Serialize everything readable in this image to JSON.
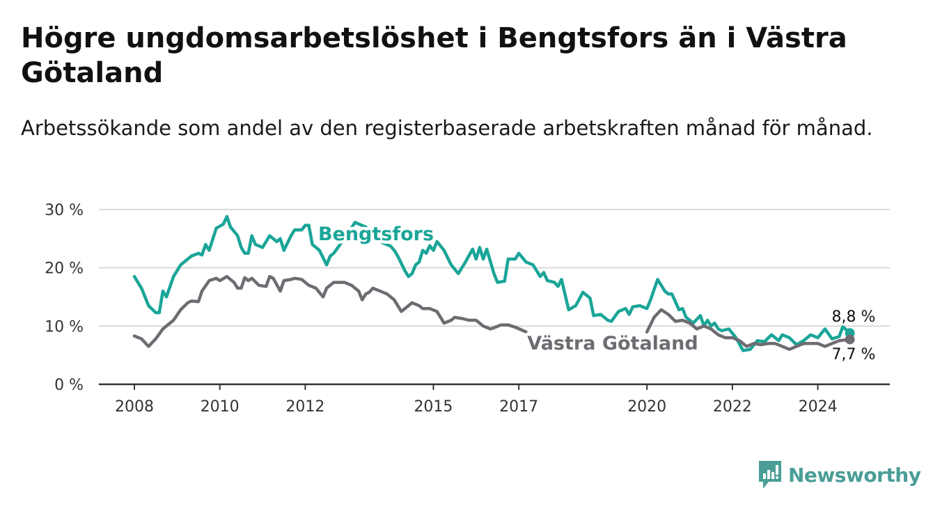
{
  "header": {
    "title": "Högre ungdomsarbetslöshet i Bengtsfors än i Västra Götaland",
    "subtitle": "Arbetssökande som andel av den registerbaserade arbetskraften månad för månad."
  },
  "brand": {
    "name": "Newsworthy",
    "color": "#4a9e97",
    "icon": "newsworthy-logo-icon"
  },
  "colors": {
    "bengtsfors": "#1aa598",
    "vastra_gotaland": "#6e6c72",
    "grid": "#d9d9d9",
    "axis": "#333333"
  },
  "chart_data": {
    "type": "line",
    "title": "Högre ungdomsarbetslöshet i Bengtsfors än i Västra Götaland",
    "subtitle": "Arbetssökande som andel av den registerbaserade arbetskraften månad för månad.",
    "xlabel": "",
    "ylabel": "",
    "xlim": [
      "2008-01",
      "2024-12"
    ],
    "ylim": [
      0,
      30
    ],
    "y_ticks": [
      0,
      10,
      20,
      30
    ],
    "y_tick_labels": [
      "0 %",
      "10 %",
      "20 %",
      "30 %"
    ],
    "x_ticks": [
      "2008",
      "2010",
      "2012",
      "2015",
      "2017",
      "2020",
      "2022",
      "2024"
    ],
    "x_tick_positions": [
      "2008-01",
      "2010-01",
      "2012-01",
      "2015-01",
      "2017-01",
      "2020-01",
      "2022-01",
      "2024-01"
    ],
    "grid": true,
    "legend": "inline",
    "series": [
      {
        "name": "Bengtsfors",
        "color": "#1aa598",
        "end_label": "8,8 %",
        "points": [
          [
            "2008-01",
            18.5
          ],
          [
            "2008-03",
            16.5
          ],
          [
            "2008-05",
            13.5
          ],
          [
            "2008-07",
            12.3
          ],
          [
            "2008-08",
            12.3
          ],
          [
            "2008-09",
            16.0
          ],
          [
            "2008-10",
            15.0
          ],
          [
            "2008-12",
            18.5
          ],
          [
            "2009-02",
            20.5
          ],
          [
            "2009-05",
            22.0
          ],
          [
            "2009-07",
            22.5
          ],
          [
            "2009-08",
            22.2
          ],
          [
            "2009-09",
            24.0
          ],
          [
            "2009-10",
            23.0
          ],
          [
            "2009-12",
            26.8
          ],
          [
            "2010-02",
            27.5
          ],
          [
            "2010-03",
            28.8
          ],
          [
            "2010-04",
            27.0
          ],
          [
            "2010-06",
            25.5
          ],
          [
            "2010-07",
            23.5
          ],
          [
            "2010-08",
            22.5
          ],
          [
            "2010-09",
            22.5
          ],
          [
            "2010-10",
            25.5
          ],
          [
            "2010-11",
            24.0
          ],
          [
            "2011-01",
            23.5
          ],
          [
            "2011-03",
            25.5
          ],
          [
            "2011-05",
            24.5
          ],
          [
            "2011-06",
            25.0
          ],
          [
            "2011-07",
            23.0
          ],
          [
            "2011-09",
            25.5
          ],
          [
            "2011-10",
            26.5
          ],
          [
            "2011-12",
            26.5
          ],
          [
            "2012-01",
            27.3
          ],
          [
            "2012-02",
            27.3
          ],
          [
            "2012-03",
            24.0
          ],
          [
            "2012-05",
            23.0
          ],
          [
            "2012-07",
            20.5
          ],
          [
            "2012-08",
            22.0
          ],
          [
            "2012-09",
            22.5
          ],
          [
            "2012-12",
            25.0
          ],
          [
            "2013-03",
            27.8
          ],
          [
            "2013-06",
            27.0
          ],
          [
            "2013-08",
            26.0
          ],
          [
            "2013-10",
            24.5
          ],
          [
            "2014-01",
            23.7
          ],
          [
            "2014-02",
            23.0
          ],
          [
            "2014-03",
            22.0
          ],
          [
            "2014-05",
            19.5
          ],
          [
            "2014-06",
            18.5
          ],
          [
            "2014-07",
            19.0
          ],
          [
            "2014-08",
            20.5
          ],
          [
            "2014-09",
            21.0
          ],
          [
            "2014-10",
            23.0
          ],
          [
            "2014-11",
            22.5
          ],
          [
            "2014-12",
            23.8
          ],
          [
            "2015-01",
            23.0
          ],
          [
            "2015-02",
            24.5
          ],
          [
            "2015-04",
            23.0
          ],
          [
            "2015-06",
            20.5
          ],
          [
            "2015-08",
            19.0
          ],
          [
            "2015-10",
            21.0
          ],
          [
            "2015-12",
            23.2
          ],
          [
            "2016-01",
            21.5
          ],
          [
            "2016-02",
            23.5
          ],
          [
            "2016-03",
            21.5
          ],
          [
            "2016-04",
            23.2
          ],
          [
            "2016-06",
            19.0
          ],
          [
            "2016-07",
            17.5
          ],
          [
            "2016-09",
            17.7
          ],
          [
            "2016-10",
            21.5
          ],
          [
            "2016-12",
            21.5
          ],
          [
            "2017-01",
            22.5
          ],
          [
            "2017-03",
            21.0
          ],
          [
            "2017-05",
            20.5
          ],
          [
            "2017-07",
            18.5
          ],
          [
            "2017-08",
            19.2
          ],
          [
            "2017-09",
            17.8
          ],
          [
            "2017-11",
            17.5
          ],
          [
            "2017-12",
            16.8
          ],
          [
            "2018-01",
            18.0
          ],
          [
            "2018-03",
            12.8
          ],
          [
            "2018-05",
            13.5
          ],
          [
            "2018-07",
            15.8
          ],
          [
            "2018-09",
            14.8
          ],
          [
            "2018-10",
            11.8
          ],
          [
            "2018-12",
            12.0
          ],
          [
            "2019-02",
            11.0
          ],
          [
            "2019-03",
            10.8
          ],
          [
            "2019-05",
            12.5
          ],
          [
            "2019-07",
            13.0
          ],
          [
            "2019-08",
            12.0
          ],
          [
            "2019-09",
            13.3
          ],
          [
            "2019-11",
            13.5
          ],
          [
            "2020-01",
            13.0
          ],
          [
            "2020-02",
            14.5
          ],
          [
            "2020-04",
            18.0
          ],
          [
            "2020-06",
            16.0
          ],
          [
            "2020-07",
            15.5
          ],
          [
            "2020-08",
            15.5
          ],
          [
            "2020-10",
            12.8
          ],
          [
            "2020-11",
            13.0
          ],
          [
            "2020-12",
            11.5
          ],
          [
            "2021-02",
            10.5
          ],
          [
            "2021-04",
            11.8
          ],
          [
            "2021-05",
            10.0
          ],
          [
            "2021-06",
            11.0
          ],
          [
            "2021-07",
            10.0
          ],
          [
            "2021-08",
            10.5
          ],
          [
            "2021-09",
            9.5
          ],
          [
            "2021-10",
            9.2
          ],
          [
            "2021-12",
            9.5
          ],
          [
            "2022-02",
            8.0
          ],
          [
            "2022-04",
            5.8
          ],
          [
            "2022-06",
            6.0
          ],
          [
            "2022-08",
            7.5
          ],
          [
            "2022-10",
            7.3
          ],
          [
            "2022-12",
            8.5
          ],
          [
            "2023-02",
            7.5
          ],
          [
            "2023-03",
            8.5
          ],
          [
            "2023-05",
            8.0
          ],
          [
            "2023-07",
            6.8
          ],
          [
            "2023-09",
            7.5
          ],
          [
            "2023-11",
            8.5
          ],
          [
            "2024-01",
            8.0
          ],
          [
            "2024-03",
            9.5
          ],
          [
            "2024-05",
            7.8
          ],
          [
            "2024-07",
            8.2
          ],
          [
            "2024-08",
            9.9
          ],
          [
            "2024-10",
            8.8
          ]
        ]
      },
      {
        "name": "Västra Götaland",
        "color": "#6e6c72",
        "end_label": "7,7 %",
        "points": [
          [
            "2008-01",
            8.3
          ],
          [
            "2008-03",
            7.8
          ],
          [
            "2008-05",
            6.5
          ],
          [
            "2008-07",
            7.8
          ],
          [
            "2008-09",
            9.5
          ],
          [
            "2008-12",
            11.0
          ],
          [
            "2009-02",
            12.8
          ],
          [
            "2009-04",
            14.0
          ],
          [
            "2009-05",
            14.3
          ],
          [
            "2009-07",
            14.2
          ],
          [
            "2009-08",
            16.0
          ],
          [
            "2009-10",
            17.8
          ],
          [
            "2009-12",
            18.2
          ],
          [
            "2010-01",
            17.8
          ],
          [
            "2010-03",
            18.5
          ],
          [
            "2010-05",
            17.5
          ],
          [
            "2010-06",
            16.5
          ],
          [
            "2010-07",
            16.5
          ],
          [
            "2010-08",
            18.3
          ],
          [
            "2010-09",
            17.8
          ],
          [
            "2010-10",
            18.2
          ],
          [
            "2010-12",
            17.0
          ],
          [
            "2011-02",
            16.8
          ],
          [
            "2011-03",
            18.5
          ],
          [
            "2011-04",
            18.2
          ],
          [
            "2011-06",
            16.0
          ],
          [
            "2011-07",
            17.8
          ],
          [
            "2011-09",
            18.0
          ],
          [
            "2011-10",
            18.2
          ],
          [
            "2011-12",
            18.0
          ],
          [
            "2012-02",
            17.0
          ],
          [
            "2012-04",
            16.5
          ],
          [
            "2012-06",
            15.0
          ],
          [
            "2012-07",
            16.5
          ],
          [
            "2012-09",
            17.5
          ],
          [
            "2012-10",
            17.5
          ],
          [
            "2012-12",
            17.5
          ],
          [
            "2013-02",
            17.0
          ],
          [
            "2013-04",
            16.0
          ],
          [
            "2013-05",
            14.5
          ],
          [
            "2013-06",
            15.5
          ],
          [
            "2013-07",
            15.8
          ],
          [
            "2013-08",
            16.5
          ],
          [
            "2013-10",
            16.0
          ],
          [
            "2013-12",
            15.5
          ],
          [
            "2014-02",
            14.5
          ],
          [
            "2014-04",
            12.5
          ],
          [
            "2014-06",
            13.5
          ],
          [
            "2014-07",
            14.0
          ],
          [
            "2014-09",
            13.5
          ],
          [
            "2014-10",
            13.0
          ],
          [
            "2014-12",
            13.0
          ],
          [
            "2015-02",
            12.5
          ],
          [
            "2015-04",
            10.5
          ],
          [
            "2015-06",
            11.0
          ],
          [
            "2015-07",
            11.5
          ],
          [
            "2015-09",
            11.3
          ],
          [
            "2015-11",
            11.0
          ],
          [
            "2016-01",
            11.0
          ],
          [
            "2016-03",
            10.0
          ],
          [
            "2016-05",
            9.5
          ],
          [
            "2016-06",
            9.7
          ],
          [
            "2016-08",
            10.2
          ],
          [
            "2016-10",
            10.2
          ],
          [
            "2016-12",
            9.8
          ],
          [
            "2017-03",
            9.0
          ],
          [
            "2020-01",
            9.0
          ],
          [
            "2020-03",
            11.5
          ],
          [
            "2020-05",
            12.8
          ],
          [
            "2020-07",
            12.0
          ],
          [
            "2020-09",
            10.8
          ],
          [
            "2020-11",
            11.0
          ],
          [
            "2021-01",
            10.5
          ],
          [
            "2021-03",
            9.5
          ],
          [
            "2021-05",
            10.0
          ],
          [
            "2021-07",
            9.5
          ],
          [
            "2021-09",
            8.5
          ],
          [
            "2021-11",
            8.0
          ],
          [
            "2022-01",
            8.0
          ],
          [
            "2022-03",
            7.5
          ],
          [
            "2022-05",
            6.5
          ],
          [
            "2022-07",
            7.0
          ],
          [
            "2022-09",
            6.8
          ],
          [
            "2022-11",
            7.0
          ],
          [
            "2023-01",
            7.0
          ],
          [
            "2023-03",
            6.5
          ],
          [
            "2023-05",
            6.0
          ],
          [
            "2023-07",
            6.5
          ],
          [
            "2023-09",
            7.0
          ],
          [
            "2023-11",
            7.0
          ],
          [
            "2024-01",
            7.0
          ],
          [
            "2024-03",
            6.5
          ],
          [
            "2024-05",
            7.0
          ],
          [
            "2024-07",
            7.5
          ],
          [
            "2024-10",
            7.7
          ]
        ]
      }
    ]
  }
}
